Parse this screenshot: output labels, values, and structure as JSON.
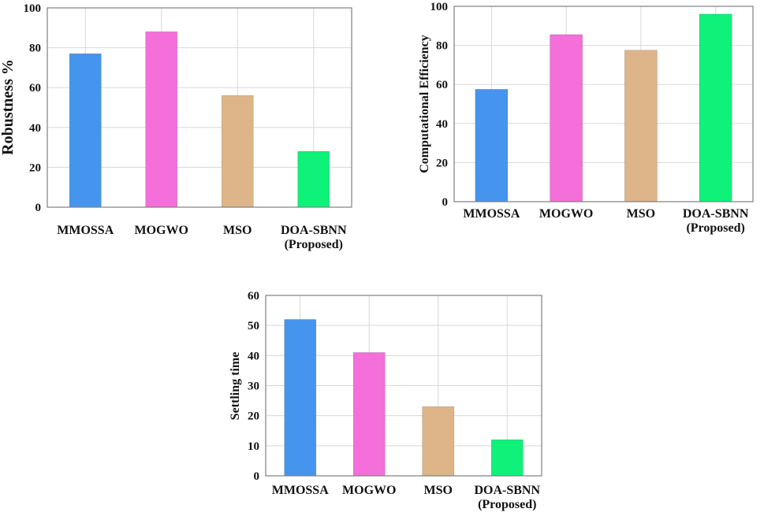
{
  "colors": {
    "MMOSSA": "#4595ee",
    "MOGWO": "#f46fd9",
    "MSO": "#deb589",
    "DOA-SBNN": "#0ef27a",
    "grid": "#d8d8d8",
    "axis": "#7f7f7f"
  },
  "chart_data": [
    {
      "type": "bar",
      "title": "",
      "xlabel": "",
      "ylabel": "Robustness %",
      "categories": [
        "MMOSSA",
        "MOGWO",
        "MSO",
        "DOA-SBNN (Proposed)"
      ],
      "category_lines": [
        [
          "MMOSSA"
        ],
        [
          "MOGWO"
        ],
        [
          "MSO"
        ],
        [
          "DOA-SBNN",
          "(Proposed)"
        ]
      ],
      "values": [
        77,
        88,
        56,
        28
      ],
      "ylim": [
        0,
        100
      ],
      "yticks": [
        0,
        20,
        40,
        60,
        80,
        100
      ],
      "grid": true
    },
    {
      "type": "bar",
      "title": "",
      "xlabel": "",
      "ylabel": "Computational Efficiency",
      "categories": [
        "MMOSSA",
        "MOGWO",
        "MSO",
        "DOA-SBNN (Proposed)"
      ],
      "category_lines": [
        [
          "MMOSSA"
        ],
        [
          "MOGWO"
        ],
        [
          "MSO"
        ],
        [
          "DOA-SBNN",
          "(Proposed)"
        ]
      ],
      "values": [
        57.5,
        85.5,
        77.5,
        96
      ],
      "ylim": [
        0,
        100
      ],
      "yticks": [
        0,
        20,
        40,
        60,
        80,
        100
      ],
      "grid": true
    },
    {
      "type": "bar",
      "title": "",
      "xlabel": "",
      "ylabel": "Settling time",
      "categories": [
        "MMOSSA",
        "MOGWO",
        "MSO",
        "DOA-SBNN (Proposed)"
      ],
      "category_lines": [
        [
          "MMOSSA"
        ],
        [
          "MOGWO"
        ],
        [
          "MSO"
        ],
        [
          "DOA-SBNN",
          "(Proposed)"
        ]
      ],
      "values": [
        52,
        41,
        23,
        12
      ],
      "ylim": [
        0,
        60
      ],
      "yticks": [
        0,
        10,
        20,
        30,
        40,
        50,
        60
      ],
      "grid": true
    }
  ]
}
